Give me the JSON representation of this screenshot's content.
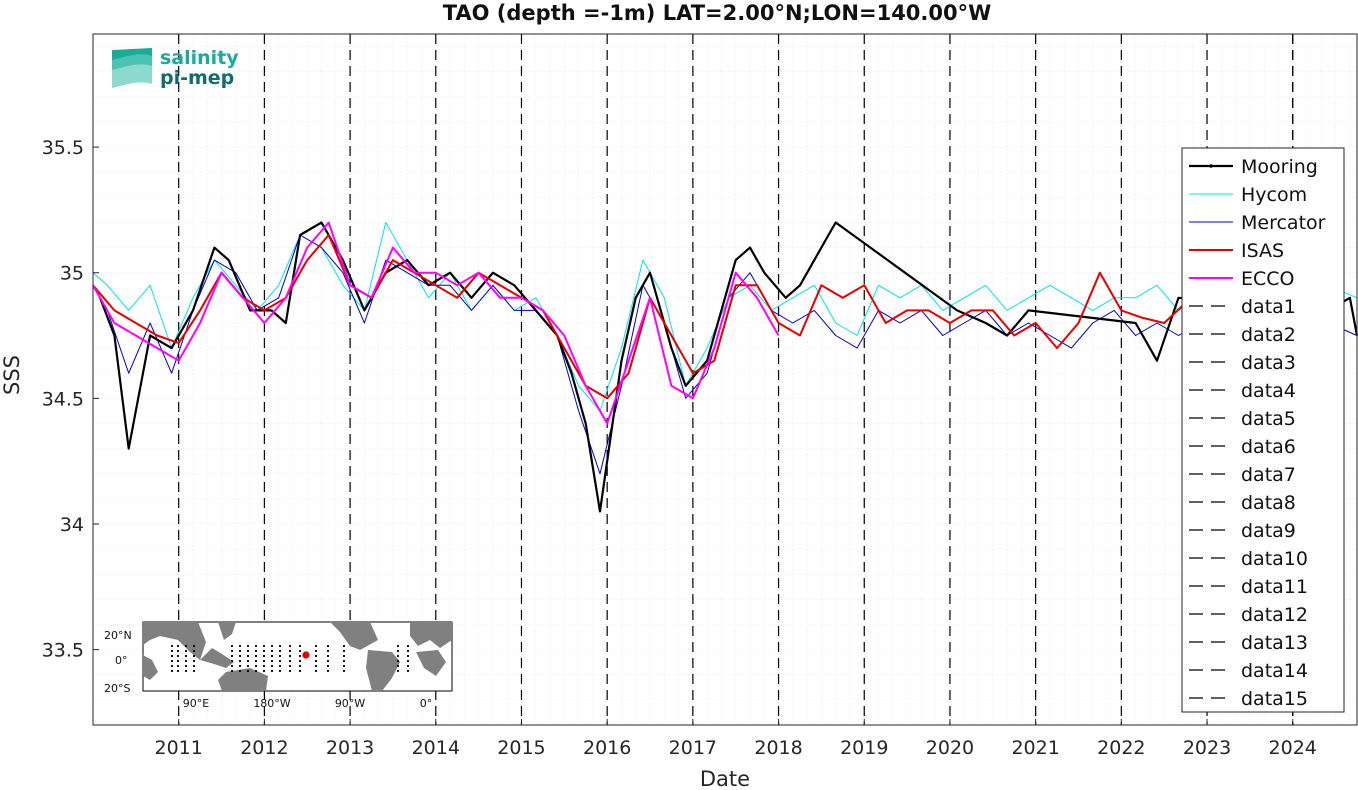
{
  "chart_data": {
    "type": "line",
    "title": "TAO (depth =-1m) LAT=2.00°N;LON=140.00°W",
    "xlabel": "Date",
    "ylabel": "SSS",
    "xlim": [
      "2010-01-01",
      "2024-10-31"
    ],
    "ylim": [
      33.2,
      35.95
    ],
    "x_tick_labels": [
      "2011",
      "2012",
      "2013",
      "2014",
      "2015",
      "2016",
      "2017",
      "2018",
      "2019",
      "2020",
      "2021",
      "2022",
      "2023",
      "2024"
    ],
    "y_ticks": [
      33.5,
      34,
      34.5,
      35,
      35.5
    ],
    "y_tick_labels": [
      "33.5",
      "34",
      "34.5",
      "35",
      "35.5"
    ],
    "grid": true,
    "minor_grid": true,
    "legend_placement": "right",
    "series": [
      {
        "name": "Mooring",
        "color": "#000000",
        "style": "solid-marker",
        "x": [
          "2010-02",
          "2010-04",
          "2010-06",
          "2010-09",
          "2010-12",
          "2011-03",
          "2011-06",
          "2011-08",
          "2011-11",
          "2012-02",
          "2012-04",
          "2012-06",
          "2012-09",
          "2012-12",
          "2013-03",
          "2013-06",
          "2013-09",
          "2013-12",
          "2014-03",
          "2014-06",
          "2014-09",
          "2014-12",
          "2015-03",
          "2015-06",
          "2015-08",
          "2015-10",
          "2015-12",
          "2016-03",
          "2016-05",
          "2016-07",
          "2016-10",
          "2016-12",
          "2017-03",
          "2017-05",
          "2017-07",
          "2017-09",
          "2017-11",
          "2018-02",
          "2018-04",
          "2018-06",
          "2018-08",
          "2018-09",
          "2020-02",
          "2020-06",
          "2020-09",
          "2020-12",
          "2022-03",
          "2022-06",
          "2022-09",
          "2024-06",
          "2024-09",
          "2024-10"
        ],
        "y": [
          34.9,
          34.75,
          34.3,
          34.75,
          34.7,
          34.85,
          35.1,
          35.05,
          34.85,
          34.85,
          34.8,
          35.15,
          35.2,
          35.05,
          34.85,
          35.0,
          35.05,
          34.95,
          35.0,
          34.9,
          35.0,
          34.95,
          34.85,
          34.75,
          34.6,
          34.4,
          34.05,
          34.65,
          34.9,
          35.0,
          34.7,
          34.55,
          34.65,
          34.85,
          35.05,
          35.1,
          35.0,
          34.9,
          34.95,
          35.05,
          35.15,
          35.2,
          34.85,
          34.8,
          34.75,
          34.85,
          34.8,
          34.65,
          34.9,
          34.85,
          34.9,
          34.75
        ]
      },
      {
        "name": "Hycom",
        "color": "#00e5e5",
        "style": "solid",
        "x": [
          "2010-01",
          "2010-03",
          "2010-06",
          "2010-09",
          "2010-12",
          "2011-03",
          "2011-06",
          "2011-09",
          "2011-12",
          "2012-03",
          "2012-06",
          "2012-09",
          "2012-12",
          "2013-03",
          "2013-06",
          "2013-09",
          "2013-12",
          "2014-03",
          "2014-06",
          "2014-09",
          "2014-12",
          "2015-03",
          "2015-06",
          "2015-09",
          "2015-12",
          "2016-03",
          "2016-06",
          "2016-09",
          "2016-12",
          "2017-03",
          "2017-06",
          "2017-09",
          "2017-12",
          "2018-03",
          "2018-06",
          "2018-09",
          "2018-12",
          "2019-03",
          "2019-06",
          "2019-09",
          "2019-12",
          "2020-03",
          "2020-06",
          "2020-09",
          "2020-12",
          "2021-03",
          "2021-06",
          "2021-09",
          "2021-12",
          "2022-03",
          "2022-06",
          "2022-09",
          "2022-12",
          "2023-03",
          "2023-06",
          "2023-09",
          "2023-12",
          "2024-03",
          "2024-06",
          "2024-10"
        ],
        "y": [
          35.0,
          34.95,
          34.85,
          34.95,
          34.7,
          34.9,
          35.05,
          34.95,
          34.85,
          34.95,
          35.15,
          35.1,
          34.95,
          34.85,
          35.2,
          35.05,
          34.9,
          35.0,
          34.85,
          34.95,
          34.85,
          34.9,
          34.75,
          34.55,
          34.45,
          34.7,
          35.05,
          34.9,
          34.55,
          34.7,
          34.9,
          34.95,
          34.85,
          34.9,
          34.95,
          34.8,
          34.75,
          34.95,
          34.9,
          34.95,
          34.85,
          34.9,
          34.95,
          34.85,
          34.9,
          34.95,
          34.9,
          34.85,
          34.9,
          34.9,
          34.95,
          34.85,
          34.9,
          34.95,
          34.9,
          34.9,
          34.95,
          34.95,
          34.95,
          34.9
        ]
      },
      {
        "name": "Mercator",
        "color": "#0000cc",
        "style": "solid",
        "x": [
          "2010-01",
          "2010-03",
          "2010-06",
          "2010-09",
          "2010-12",
          "2011-03",
          "2011-06",
          "2011-09",
          "2011-12",
          "2012-03",
          "2012-06",
          "2012-09",
          "2012-12",
          "2013-03",
          "2013-06",
          "2013-09",
          "2013-12",
          "2014-03",
          "2014-06",
          "2014-09",
          "2014-12",
          "2015-03",
          "2015-06",
          "2015-09",
          "2015-12",
          "2016-03",
          "2016-06",
          "2016-09",
          "2016-12",
          "2017-03",
          "2017-06",
          "2017-09",
          "2017-12",
          "2018-03",
          "2018-06",
          "2018-09",
          "2018-12",
          "2019-03",
          "2019-06",
          "2019-09",
          "2019-12",
          "2020-03",
          "2020-06",
          "2020-09",
          "2020-12",
          "2021-03",
          "2021-06",
          "2021-09",
          "2021-12",
          "2022-03",
          "2022-06",
          "2022-09",
          "2022-12",
          "2023-03",
          "2023-06",
          "2023-09",
          "2023-12",
          "2024-03",
          "2024-06",
          "2024-10"
        ],
        "y": [
          34.95,
          34.85,
          34.6,
          34.8,
          34.6,
          34.85,
          35.05,
          35.0,
          34.85,
          34.9,
          35.15,
          35.1,
          35.0,
          34.8,
          35.05,
          35.0,
          34.95,
          34.95,
          34.85,
          34.95,
          34.85,
          34.85,
          34.75,
          34.45,
          34.2,
          34.55,
          34.95,
          34.8,
          34.5,
          34.6,
          34.9,
          35.0,
          34.85,
          34.8,
          34.85,
          34.75,
          34.7,
          34.85,
          34.8,
          34.85,
          34.75,
          34.8,
          34.85,
          34.75,
          34.8,
          34.75,
          34.7,
          34.8,
          34.85,
          34.75,
          34.8,
          34.75,
          34.8,
          34.85,
          34.8,
          34.85,
          34.9,
          34.85,
          34.8,
          34.75
        ]
      },
      {
        "name": "ISAS",
        "color": "#e60000",
        "style": "solid",
        "x": [
          "2010-01",
          "2010-04",
          "2010-07",
          "2010-10",
          "2011-01",
          "2011-04",
          "2011-07",
          "2011-10",
          "2012-01",
          "2012-04",
          "2012-07",
          "2012-10",
          "2013-01",
          "2013-04",
          "2013-07",
          "2013-10",
          "2014-01",
          "2014-04",
          "2014-07",
          "2014-10",
          "2015-01",
          "2015-04",
          "2015-07",
          "2015-10",
          "2016-01",
          "2016-04",
          "2016-07",
          "2016-10",
          "2017-01",
          "2017-04",
          "2017-07",
          "2017-10",
          "2018-01",
          "2018-04",
          "2018-07",
          "2018-10",
          "2019-01",
          "2019-04",
          "2019-07",
          "2019-10",
          "2020-01",
          "2020-04",
          "2020-07",
          "2020-10",
          "2021-01",
          "2021-04",
          "2021-07",
          "2021-10",
          "2022-01",
          "2022-04",
          "2022-07",
          "2022-10"
        ],
        "y": [
          34.95,
          34.85,
          34.8,
          34.75,
          34.72,
          34.85,
          35.0,
          34.9,
          34.85,
          34.9,
          35.05,
          35.15,
          34.95,
          34.9,
          35.05,
          35.0,
          34.95,
          34.9,
          35.0,
          34.95,
          34.9,
          34.85,
          34.7,
          34.55,
          34.5,
          34.6,
          34.9,
          34.75,
          34.6,
          34.65,
          34.95,
          34.95,
          34.8,
          34.75,
          34.95,
          34.9,
          34.95,
          34.8,
          34.85,
          34.85,
          34.8,
          34.85,
          34.85,
          34.75,
          34.8,
          34.7,
          34.8,
          35.0,
          34.85,
          34.82,
          34.8,
          34.88
        ]
      },
      {
        "name": "ECCO",
        "color": "#ff00ff",
        "style": "solid",
        "x": [
          "2010-01",
          "2010-04",
          "2010-07",
          "2010-10",
          "2011-01",
          "2011-04",
          "2011-07",
          "2011-10",
          "2012-01",
          "2012-04",
          "2012-07",
          "2012-10",
          "2013-01",
          "2013-04",
          "2013-07",
          "2013-10",
          "2014-01",
          "2014-04",
          "2014-07",
          "2014-10",
          "2015-01",
          "2015-04",
          "2015-07",
          "2015-10",
          "2016-01",
          "2016-04",
          "2016-07",
          "2016-10",
          "2017-01",
          "2017-04",
          "2017-07",
          "2017-10",
          "2018-01"
        ],
        "y": [
          34.95,
          34.8,
          34.75,
          34.7,
          34.65,
          34.8,
          35.0,
          34.9,
          34.8,
          34.9,
          35.1,
          35.2,
          34.95,
          34.9,
          35.1,
          35.0,
          35.0,
          34.95,
          35.0,
          34.9,
          34.9,
          34.85,
          34.75,
          34.55,
          34.4,
          34.65,
          34.9,
          34.55,
          34.5,
          34.7,
          35.0,
          34.9,
          34.75
        ]
      },
      {
        "name": "data1",
        "color": "#000000",
        "style": "dashed",
        "x": [
          "2011-01",
          "2011-01"
        ],
        "y": [
          33.2,
          35.95
        ]
      },
      {
        "name": "data2",
        "color": "#000000",
        "style": "dashed",
        "x": [
          "2012-01",
          "2012-01"
        ],
        "y": [
          33.2,
          35.95
        ]
      },
      {
        "name": "data3",
        "color": "#000000",
        "style": "dashed",
        "x": [
          "2013-01",
          "2013-01"
        ],
        "y": [
          33.2,
          35.95
        ]
      },
      {
        "name": "data4",
        "color": "#000000",
        "style": "dashed",
        "x": [
          "2014-01",
          "2014-01"
        ],
        "y": [
          33.2,
          35.95
        ]
      },
      {
        "name": "data5",
        "color": "#000000",
        "style": "dashed",
        "x": [
          "2015-01",
          "2015-01"
        ],
        "y": [
          33.2,
          35.95
        ]
      },
      {
        "name": "data6",
        "color": "#000000",
        "style": "dashed",
        "x": [
          "2016-01",
          "2016-01"
        ],
        "y": [
          33.2,
          35.95
        ]
      },
      {
        "name": "data7",
        "color": "#000000",
        "style": "dashed",
        "x": [
          "2017-01",
          "2017-01"
        ],
        "y": [
          33.2,
          35.95
        ]
      },
      {
        "name": "data8",
        "color": "#000000",
        "style": "dashed",
        "x": [
          "2018-01",
          "2018-01"
        ],
        "y": [
          33.2,
          35.95
        ]
      },
      {
        "name": "data9",
        "color": "#000000",
        "style": "dashed",
        "x": [
          "2019-01",
          "2019-01"
        ],
        "y": [
          33.2,
          35.95
        ]
      },
      {
        "name": "data10",
        "color": "#000000",
        "style": "dashed",
        "x": [
          "2020-01",
          "2020-01"
        ],
        "y": [
          33.2,
          35.95
        ]
      },
      {
        "name": "data11",
        "color": "#000000",
        "style": "dashed",
        "x": [
          "2021-01",
          "2021-01"
        ],
        "y": [
          33.2,
          35.95
        ]
      },
      {
        "name": "data12",
        "color": "#000000",
        "style": "dashed",
        "x": [
          "2022-01",
          "2022-01"
        ],
        "y": [
          33.2,
          35.95
        ]
      },
      {
        "name": "data13",
        "color": "#000000",
        "style": "dashed",
        "x": [
          "2023-01",
          "2023-01"
        ],
        "y": [
          33.2,
          35.95
        ]
      },
      {
        "name": "data14",
        "color": "#000000",
        "style": "dashed",
        "x": [
          "2024-01",
          "2024-01"
        ],
        "y": [
          33.2,
          35.95
        ]
      },
      {
        "name": "data15",
        "color": "#000000",
        "style": "dashed",
        "x": [
          "2024-01",
          "2024-01"
        ],
        "y": [
          33.2,
          35.95
        ]
      }
    ]
  },
  "logo": {
    "line1": "salinity",
    "line2": "pi-mep",
    "color1": "#1aab9b",
    "color2": "#0f6e6b"
  },
  "inset_map": {
    "y_labels": [
      "20°N",
      "0°",
      "20°S"
    ],
    "x_labels": [
      "90°E",
      "180°W",
      "90°W",
      "0°"
    ],
    "land_color": "#808080",
    "marker_color": "#e60000"
  }
}
